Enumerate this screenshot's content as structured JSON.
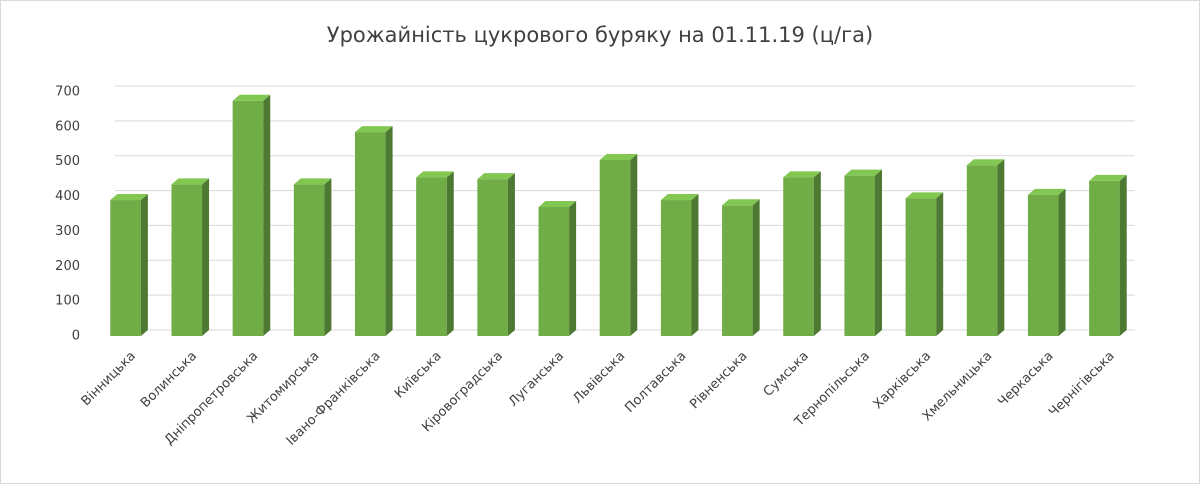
{
  "chart_data": {
    "type": "bar",
    "title": "Урожайність цукрового буряку на 01.11.19  (ц/га)",
    "categories": [
      "Вінницька",
      "Волинська",
      "Дніпропетровська",
      "Житомирська",
      "Івано-Франківська",
      "Київська",
      "Кіровоградська",
      "Луганська",
      "Львівська",
      "Полтавська",
      "Рівненська",
      "Сумська",
      "Тернопільська",
      "Харківська",
      "Хмельницька",
      "Черкаська",
      "Чернігівська"
    ],
    "values": [
      390,
      435,
      675,
      435,
      585,
      455,
      450,
      370,
      505,
      390,
      375,
      455,
      460,
      395,
      490,
      405,
      445
    ],
    "color": "#70ad47",
    "ylim": [
      0,
      700
    ],
    "yticks": [
      0,
      100,
      200,
      300,
      400,
      500,
      600,
      700
    ],
    "grid": true
  }
}
